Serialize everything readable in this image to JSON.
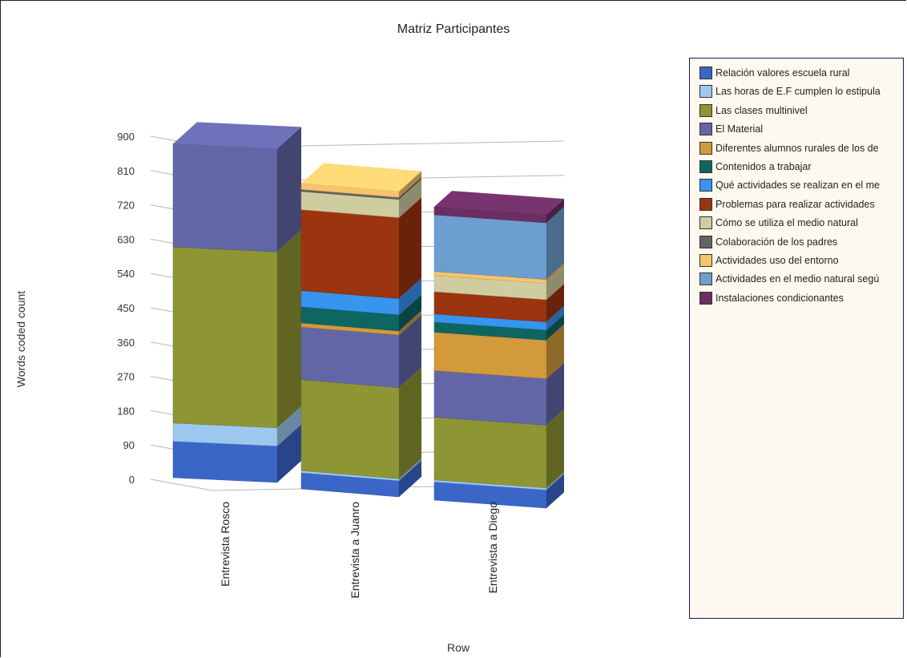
{
  "chart_data": {
    "type": "bar",
    "stacked": true,
    "title": "Matriz Participantes",
    "xlabel": "Row",
    "ylabel": "Words coded count",
    "ylim": [
      0,
      900
    ],
    "yticks": [
      "0",
      "90",
      "180",
      "270",
      "360",
      "450",
      "540",
      "630",
      "720",
      "810",
      "900"
    ],
    "categories": [
      "Entrevista Rosco",
      "Entrevista a Juanro",
      "Entrevista  a Diego"
    ],
    "legend_position": "right",
    "series": [
      {
        "name": "Relación valores escuela rural",
        "color": "#3a66c8",
        "values": [
          90,
          40,
          45
        ]
      },
      {
        "name": "Las horas de E.F cumplen lo estipula",
        "color": "#9cc8f0",
        "values": [
          45,
          5,
          5
        ]
      },
      {
        "name": "Las clases multinivel",
        "color": "#8e9534",
        "values": [
          435,
          225,
          155
        ]
      },
      {
        "name": "El Material",
        "color": "#6366a6",
        "values": [
          255,
          130,
          115
        ]
      },
      {
        "name": "Diferentes alumnos rurales de los de",
        "color": "#d29a3a",
        "values": [
          0,
          10,
          95
        ]
      },
      {
        "name": "Contenidos a trabajar",
        "color": "#0e6663",
        "values": [
          0,
          40,
          25
        ]
      },
      {
        "name": "Qué actividades se realizan en el me",
        "color": "#3794ef",
        "values": [
          0,
          40,
          20
        ]
      },
      {
        "name": "Problemas para realizar actividades",
        "color": "#9c3410",
        "values": [
          0,
          200,
          55
        ]
      },
      {
        "name": "Cómo se utiliza el medio natural",
        "color": "#cfcca0",
        "values": [
          0,
          45,
          40
        ]
      },
      {
        "name": "Colaboración de los padres",
        "color": "#636363",
        "values": [
          0,
          5,
          0
        ]
      },
      {
        "name": "Actividades uso del entorno",
        "color": "#f6c46a",
        "values": [
          0,
          15,
          10
        ]
      },
      {
        "name": "Actividades en el medio natural segú",
        "color": "#6c9fd0",
        "values": [
          0,
          0,
          140
        ]
      },
      {
        "name": "Instalaciones condicionantes",
        "color": "#6b2e62",
        "values": [
          0,
          0,
          20
        ]
      }
    ]
  }
}
